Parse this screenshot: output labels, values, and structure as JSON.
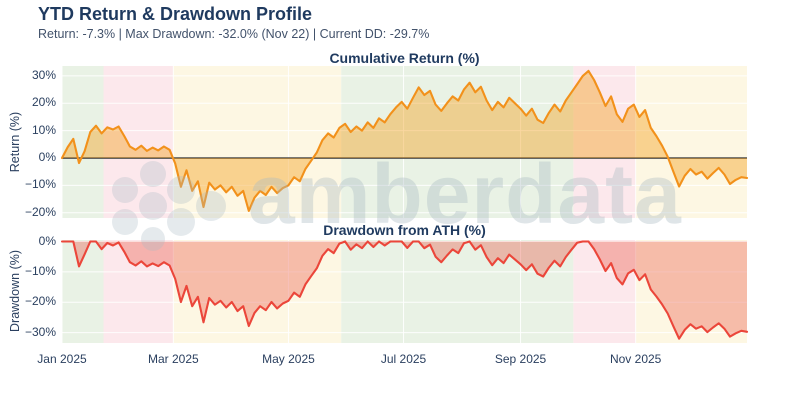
{
  "header": {
    "title": "YTD Return & Drawdown Profile",
    "subtitle": "Return: -7.3% | Max Drawdown: -32.0% (Nov 22) | Current DD: -29.7%"
  },
  "watermark": {
    "text": "amberdata"
  },
  "stats": {
    "ytd_return_pct": -7.3,
    "max_drawdown_pct": -32.0,
    "max_drawdown_date": "Nov 22",
    "current_drawdown_pct": -29.7
  },
  "chart_data": {
    "type": "line",
    "x": {
      "unit": "day_of_year_2025",
      "step_days": 3,
      "range": [
        0,
        363
      ],
      "tick_days": [
        0,
        59,
        120,
        181,
        243,
        304
      ],
      "tick_labels": [
        "Jan 2025",
        "Mar 2025",
        "May 2025",
        "Jul 2025",
        "Sep 2025",
        "Nov 2025"
      ]
    },
    "regimes": [
      {
        "start": 0,
        "end": 22,
        "color": "#e9f2e5"
      },
      {
        "start": 22,
        "end": 59,
        "color": "#fce8ec"
      },
      {
        "start": 59,
        "end": 148,
        "color": "#fdf7e3"
      },
      {
        "start": 148,
        "end": 271,
        "color": "#e9f2e5"
      },
      {
        "start": 271,
        "end": 304,
        "color": "#fce8ec"
      },
      {
        "start": 304,
        "end": 363,
        "color": "#fdf7e3"
      }
    ],
    "grid_color": "rgba(255,255,255,0.9)",
    "charts": [
      {
        "title": "Cumulative Return (%)",
        "y_axis_title": "Return (%)",
        "series_name": "cumulative-return",
        "line_color": "#f2911b",
        "fill_color": "rgba(243,156,18,0.40)",
        "zero_line": true,
        "zero_line_color": "#4d4d4d",
        "y_domain": [
          -21.9,
          33.6
        ],
        "y_ticks": [
          30,
          20,
          10,
          0,
          -10,
          -20
        ],
        "y_tick_labels": [
          "30%",
          "20%",
          "10%",
          "0%",
          "−10%",
          "−20%"
        ],
        "values": [
          0,
          4,
          7,
          -1.8,
          2.5,
          9.5,
          11.8,
          9,
          11.2,
          10.4,
          11.5,
          8,
          4.2,
          3,
          4.5,
          2.6,
          3.8,
          2.8,
          4.2,
          3,
          -2,
          -10.5,
          -4.5,
          -12,
          -8.5,
          -17.9,
          -9,
          -11.5,
          -10,
          -12.5,
          -10.5,
          -13.8,
          -12,
          -19.3,
          -14.5,
          -12,
          -13.5,
          -10.5,
          -12.8,
          -11,
          -10,
          -7,
          -8.5,
          -4,
          -1,
          2,
          6.5,
          9,
          7.5,
          11,
          12.5,
          9.5,
          11.5,
          10,
          13,
          11,
          14.5,
          13,
          16,
          18.5,
          20.5,
          18,
          22,
          25.8,
          23,
          24.5,
          19.5,
          17.2,
          20,
          22.5,
          21,
          25,
          27.5,
          24,
          26,
          21,
          17.5,
          20.5,
          18.5,
          22,
          20,
          18,
          15.5,
          18,
          14,
          12.8,
          16.5,
          19.5,
          17,
          21,
          24,
          27,
          30,
          31.8,
          28.5,
          24,
          19,
          22.5,
          16,
          13.2,
          18,
          19.5,
          15,
          17.5,
          11,
          8,
          4.5,
          0.5,
          -5,
          -10.4,
          -6.5,
          -4,
          -6,
          -5,
          -7.5,
          -5.5,
          -3.6,
          -6,
          -9.5,
          -8,
          -7,
          -7.3
        ]
      },
      {
        "title": "Drawdown from ATH (%)",
        "y_axis_title": "Drawdown (%)",
        "series_name": "drawdown-from-ath",
        "line_color": "#eb463a",
        "fill_color": "rgba(231,76,60,0.35)",
        "zero_line": false,
        "y_domain": [
          -33.4,
          0.5
        ],
        "y_ticks": [
          0,
          -10,
          -20,
          -30
        ],
        "y_tick_labels": [
          "0%",
          "−10%",
          "−20%",
          "−30%"
        ],
        "values": [
          0,
          0,
          0,
          -8.2,
          -4.2,
          0,
          0,
          -2.5,
          -0.5,
          -1.3,
          -0.3,
          -3.4,
          -6.8,
          -7.9,
          -6.5,
          -8.2,
          -7.2,
          -8.1,
          -6.8,
          -7.9,
          -12.3,
          -19.9,
          -14.6,
          -21.3,
          -18.2,
          -26.6,
          -18.6,
          -20.8,
          -19.5,
          -21.7,
          -19.9,
          -22.9,
          -21.3,
          -27.8,
          -23.5,
          -21.3,
          -22.6,
          -19.9,
          -22,
          -20.4,
          -19.5,
          -16.8,
          -18.2,
          -14.1,
          -11.4,
          -8.8,
          -4.7,
          -2.5,
          -3.8,
          -0.7,
          0,
          -2.7,
          -0.9,
          -2.2,
          0,
          -1.8,
          0,
          -1.3,
          0,
          0,
          0,
          -2.1,
          0,
          0,
          -2.2,
          -1,
          -5,
          -6.8,
          -4.6,
          -2.6,
          -3.8,
          -0.6,
          0,
          -2.7,
          -1.2,
          -5.1,
          -7.8,
          -5.5,
          -7.1,
          -4.3,
          -5.9,
          -7.5,
          -9.4,
          -7.5,
          -10.6,
          -11.5,
          -8.6,
          -6.3,
          -8.2,
          -5.1,
          -2.7,
          -0.4,
          0,
          0,
          -2.5,
          -5.9,
          -9.7,
          -7.1,
          -12,
          -14.1,
          -10.5,
          -9.3,
          -12.7,
          -10.8,
          -15.8,
          -18.1,
          -20.7,
          -23.7,
          -27.9,
          -32,
          -29.1,
          -27.2,
          -28.7,
          -27.9,
          -29.8,
          -28.3,
          -26.9,
          -28.7,
          -31.3,
          -30.2,
          -29.4,
          -29.7
        ]
      }
    ]
  }
}
